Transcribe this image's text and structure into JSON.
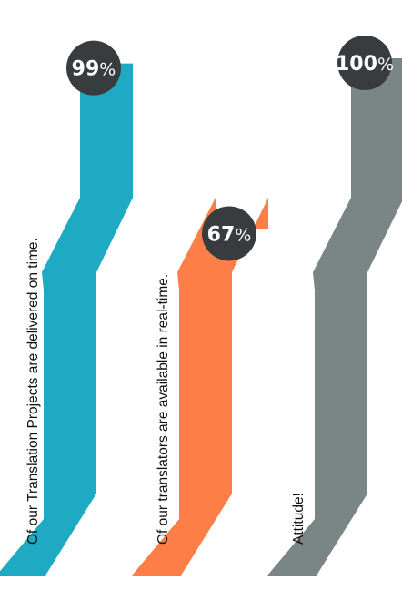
{
  "chart_data": {
    "type": "bar",
    "unit": "%",
    "items": [
      {
        "value": 99,
        "label": "Of our Translation Projects are delivered on time.",
        "color": "#1faac4"
      },
      {
        "value": 67,
        "label": "Of our translators are available in real-time.",
        "color": "#fd7f47"
      },
      {
        "value": 100,
        "label": "Attitude!",
        "color": "#7a8685"
      }
    ],
    "badge_color": "#393c3e"
  }
}
